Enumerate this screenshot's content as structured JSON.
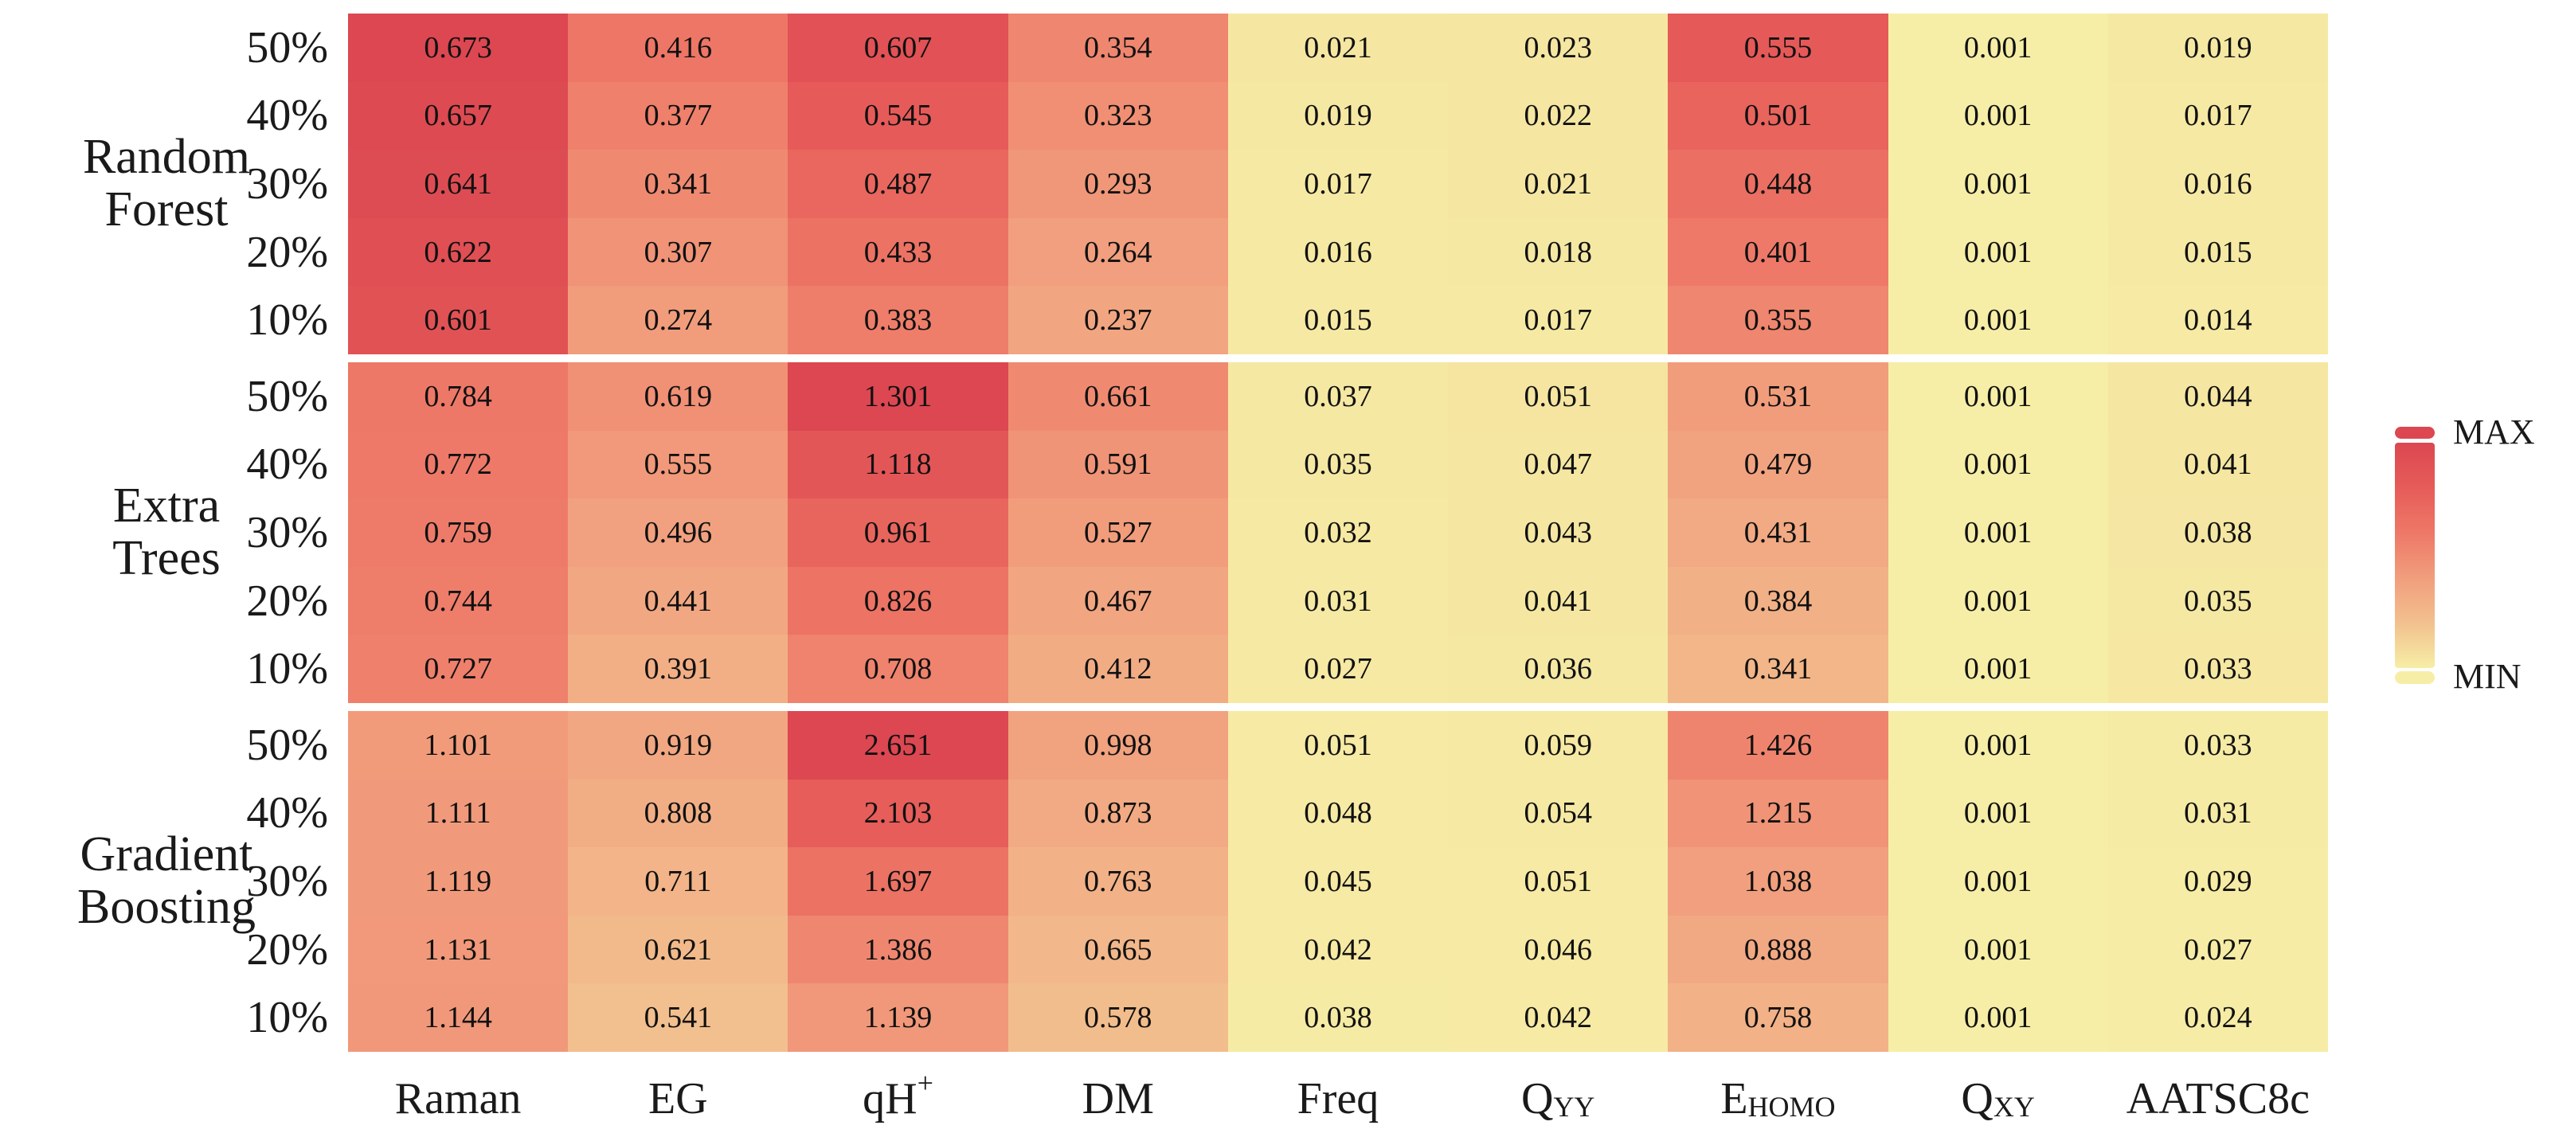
{
  "chart_data": {
    "type": "heatmap",
    "row_labels": [
      "50%",
      "40%",
      "30%",
      "20%",
      "10%"
    ],
    "columns": [
      {
        "main": "Raman"
      },
      {
        "main": "EG"
      },
      {
        "main": "qH",
        "sup": "+"
      },
      {
        "main": "DM"
      },
      {
        "main": "Freq"
      },
      {
        "main": "Q",
        "sub": "YY"
      },
      {
        "main": "E",
        "sub": "HOMO"
      },
      {
        "main": "Q",
        "sub": "XY"
      },
      {
        "main": "AATSC8c"
      }
    ],
    "blocks": [
      {
        "model_lines": [
          "Random",
          "Forest"
        ],
        "values": [
          [
            0.673,
            0.416,
            0.607,
            0.354,
            0.021,
            0.023,
            0.555,
            0.001,
            0.019
          ],
          [
            0.657,
            0.377,
            0.545,
            0.323,
            0.019,
            0.022,
            0.501,
            0.001,
            0.017
          ],
          [
            0.641,
            0.341,
            0.487,
            0.293,
            0.017,
            0.021,
            0.448,
            0.001,
            0.016
          ],
          [
            0.622,
            0.307,
            0.433,
            0.264,
            0.016,
            0.018,
            0.401,
            0.001,
            0.015
          ],
          [
            0.601,
            0.274,
            0.383,
            0.237,
            0.015,
            0.017,
            0.355,
            0.001,
            0.014
          ]
        ]
      },
      {
        "model_lines": [
          "Extra",
          "Trees"
        ],
        "values": [
          [
            0.784,
            0.619,
            1.301,
            0.661,
            0.037,
            0.051,
            0.531,
            0.001,
            0.044
          ],
          [
            0.772,
            0.555,
            1.118,
            0.591,
            0.035,
            0.047,
            0.479,
            0.001,
            0.041
          ],
          [
            0.759,
            0.496,
            0.961,
            0.527,
            0.032,
            0.043,
            0.431,
            0.001,
            0.038
          ],
          [
            0.744,
            0.441,
            0.826,
            0.467,
            0.031,
            0.041,
            0.384,
            0.001,
            0.035
          ],
          [
            0.727,
            0.391,
            0.708,
            0.412,
            0.027,
            0.036,
            0.341,
            0.001,
            0.033
          ]
        ]
      },
      {
        "model_lines": [
          "Gradient",
          "Boosting"
        ],
        "values": [
          [
            1.101,
            0.919,
            2.651,
            0.998,
            0.051,
            0.059,
            1.426,
            0.001,
            0.033
          ],
          [
            1.111,
            0.808,
            2.103,
            0.873,
            0.048,
            0.054,
            1.215,
            0.001,
            0.031
          ],
          [
            1.119,
            0.711,
            1.697,
            0.763,
            0.045,
            0.051,
            1.038,
            0.001,
            0.029
          ],
          [
            1.131,
            0.621,
            1.386,
            0.665,
            0.042,
            0.046,
            0.888,
            0.001,
            0.027
          ],
          [
            1.144,
            0.541,
            1.139,
            0.578,
            0.038,
            0.042,
            0.758,
            0.001,
            0.024
          ]
        ]
      }
    ],
    "normalization": "per-block min-max",
    "value_format_decimals": 3,
    "legend": {
      "max_label": "MAX",
      "min_label": "MIN"
    },
    "colormap": [
      {
        "t": 0.0,
        "color": "#f6eea6"
      },
      {
        "t": 0.2,
        "color": "#f2c08e"
      },
      {
        "t": 0.4,
        "color": "#f19e7d"
      },
      {
        "t": 0.6,
        "color": "#ee7867"
      },
      {
        "t": 0.8,
        "color": "#e65c59"
      },
      {
        "t": 1.0,
        "color": "#dc4751"
      }
    ],
    "text_color": "#111111",
    "background_color": "#ffffff"
  }
}
